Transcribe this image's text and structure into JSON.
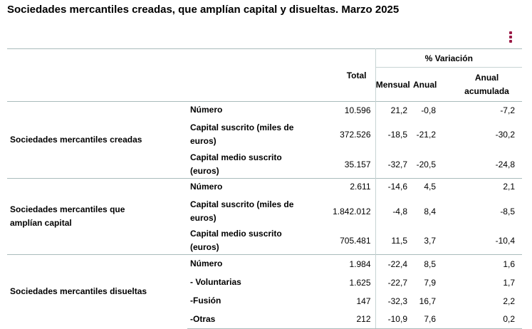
{
  "title": "Sociedades mercantiles creadas, que amplían capital y disueltas. Marzo 2025",
  "menu_icon": "kebab-menu-icon",
  "accent_color": "#9b1b47",
  "headers": {
    "total": "Total",
    "variacion": "% Variación",
    "mensual": "Mensual",
    "anual": "Anual",
    "anual_acumulada": "Anual acumulada"
  },
  "groups": [
    {
      "label": "Sociedades mercantiles creadas",
      "rows": [
        {
          "label": "Número",
          "total": "10.596",
          "mensual": "21,2",
          "anual": "-0,8",
          "acumulada": "-7,2"
        },
        {
          "label": "Capital suscrito (miles de euros)",
          "total": "372.526",
          "mensual": "-18,5",
          "anual": "-21,2",
          "acumulada": "-30,2"
        },
        {
          "label": "Capital medio suscrito (euros)",
          "total": "35.157",
          "mensual": "-32,7",
          "anual": "-20,5",
          "acumulada": "-24,8"
        }
      ]
    },
    {
      "label": "Sociedades mercantiles que amplían capital",
      "rows": [
        {
          "label": "Número",
          "total": "2.611",
          "mensual": "-14,6",
          "anual": "4,5",
          "acumulada": "2,1"
        },
        {
          "label": "Capital suscrito (miles de euros)",
          "total": "1.842.012",
          "mensual": "-4,8",
          "anual": "8,4",
          "acumulada": "-8,5"
        },
        {
          "label": "Capital medio suscrito (euros)",
          "total": "705.481",
          "mensual": "11,5",
          "anual": "3,7",
          "acumulada": "-10,4"
        }
      ]
    },
    {
      "label": "Sociedades mercantiles disueltas",
      "rows": [
        {
          "label": "Número",
          "total": "1.984",
          "mensual": "-22,4",
          "anual": "8,5",
          "acumulada": "1,6"
        },
        {
          "label": "- Voluntarias",
          "total": "1.625",
          "mensual": "-22,7",
          "anual": "7,9",
          "acumulada": "1,7"
        },
        {
          "label": "-Fusión",
          "total": "147",
          "mensual": "-32,3",
          "anual": "16,7",
          "acumulada": "2,2"
        },
        {
          "label": "-Otras",
          "total": "212",
          "mensual": "-10,9",
          "anual": "7,6",
          "acumulada": "0,2"
        }
      ]
    }
  ]
}
